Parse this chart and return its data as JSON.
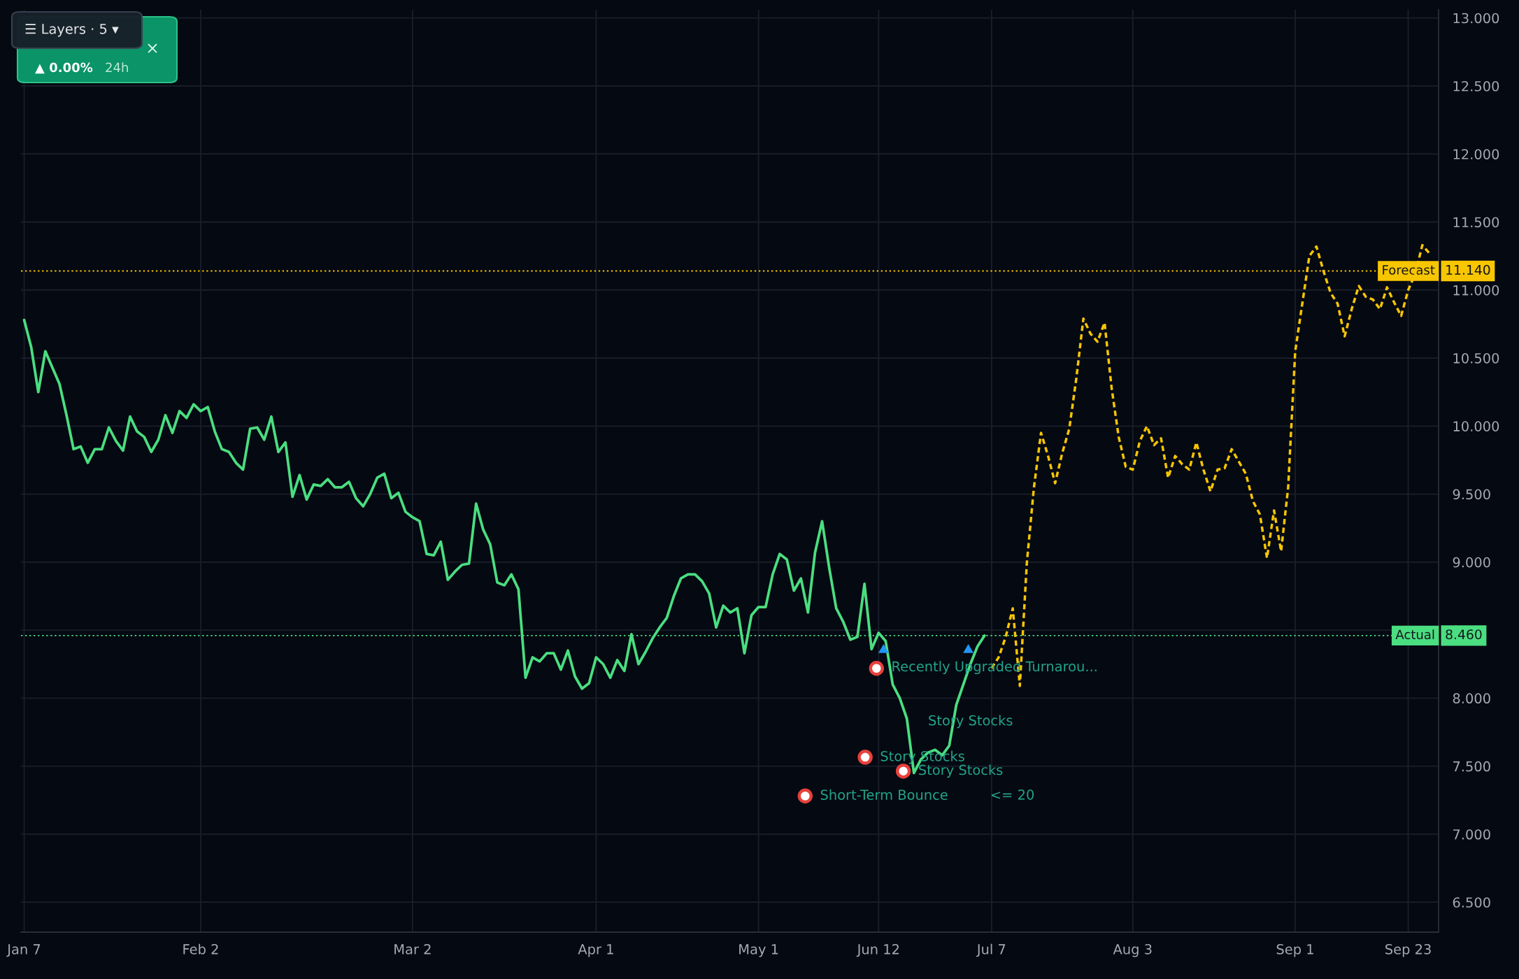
{
  "chart_data": {
    "type": "line",
    "categories": [
      "Jan 7",
      null,
      null,
      null,
      null,
      null,
      null,
      null,
      null,
      null,
      null,
      null,
      null,
      null,
      null,
      null,
      null,
      null,
      null,
      null,
      null,
      null,
      null,
      null,
      null,
      "Feb 2",
      null,
      null,
      null,
      null,
      null,
      null,
      null,
      null,
      null,
      null,
      null,
      null,
      null,
      null,
      null,
      null,
      null,
      null,
      null,
      null,
      null,
      null,
      null,
      null,
      null,
      null,
      null,
      null,
      null,
      "Mar 2",
      null,
      null,
      null,
      null,
      null,
      null,
      null,
      null,
      null,
      null,
      null,
      null,
      null,
      null,
      null,
      null,
      null,
      null,
      null,
      null,
      null,
      null,
      null,
      null,
      null,
      "Apr 1",
      null,
      null,
      null,
      null,
      null,
      null,
      null,
      null,
      null,
      null,
      null,
      null,
      null,
      null,
      null,
      null,
      null,
      null,
      null,
      null,
      null,
      null,
      "May 1",
      null,
      null,
      null,
      null,
      null,
      null,
      null,
      null,
      null,
      null,
      null,
      null,
      null,
      null,
      null,
      null,
      "Jun 12",
      null,
      null,
      null,
      null,
      null,
      null,
      null,
      null,
      null,
      null,
      null,
      null,
      null,
      null,
      null,
      "Jul 7",
      null,
      null,
      null,
      null,
      null,
      null,
      null,
      null,
      null,
      null,
      null,
      null,
      null,
      null,
      null,
      null,
      null,
      null,
      null,
      "Aug 3",
      null,
      null,
      null,
      null,
      null,
      null,
      null,
      null,
      null,
      null,
      null,
      null,
      null,
      null,
      null,
      null,
      null,
      null,
      null,
      null,
      null,
      null,
      "Sep 1",
      null,
      null,
      null,
      null,
      null,
      null,
      null,
      null,
      null,
      null,
      null,
      null,
      null,
      null,
      null,
      "Sep 23",
      null,
      null,
      null
    ],
    "series": [
      {
        "color": "#4ade80",
        "line_style": "solid",
        "values": [
          10.78,
          10.58,
          10.25,
          10.55,
          10.43,
          10.31,
          10.08,
          9.83,
          9.85,
          9.73,
          9.83,
          9.83,
          9.99,
          9.89,
          9.82,
          10.07,
          9.96,
          9.92,
          9.81,
          9.9,
          10.08,
          9.95,
          10.11,
          10.06,
          10.16,
          10.11,
          10.14,
          9.96,
          9.83,
          9.81,
          9.73,
          9.68,
          9.98,
          9.99,
          9.9,
          10.07,
          9.81,
          9.88,
          9.48,
          9.64,
          9.46,
          9.57,
          9.56,
          9.61,
          9.55,
          9.55,
          9.59,
          9.47,
          9.41,
          9.5,
          9.62,
          9.65,
          9.47,
          9.51,
          9.37,
          9.33,
          9.3,
          9.06,
          9.05,
          9.15,
          8.87,
          8.93,
          8.98,
          8.99,
          9.43,
          9.24,
          9.13,
          8.85,
          8.83,
          8.91,
          8.8,
          8.15,
          8.3,
          8.27,
          8.33,
          8.33,
          8.21,
          8.35,
          8.16,
          8.07,
          8.11,
          8.3,
          8.25,
          8.15,
          8.28,
          8.2,
          8.47,
          8.25,
          8.34,
          8.44,
          8.52,
          8.59,
          8.75,
          8.88,
          8.91,
          8.91,
          8.86,
          8.77,
          8.52,
          8.68,
          8.63,
          8.66,
          8.33,
          8.61,
          8.67,
          8.67,
          8.91,
          9.06,
          9.02,
          8.79,
          8.88,
          8.63,
          9.07,
          9.3,
          8.96,
          8.66,
          8.56,
          8.43,
          8.45,
          8.84,
          8.36,
          8.48,
          8.42,
          8.1,
          8.0,
          7.85,
          7.45,
          7.55,
          7.6,
          7.62,
          7.58,
          7.65,
          7.95,
          8.1,
          8.25,
          8.38,
          8.46,
          null,
          null,
          null,
          null,
          null,
          null,
          null,
          null,
          null,
          null,
          null,
          null,
          null,
          null,
          null,
          null,
          null,
          null,
          null,
          null,
          null,
          null,
          null,
          null,
          null,
          null,
          null,
          null,
          null,
          null,
          null,
          null,
          null,
          null,
          null,
          null,
          null,
          null,
          null,
          null,
          null,
          null,
          null,
          null,
          null,
          null,
          null,
          null,
          null,
          null,
          null,
          null,
          null,
          null,
          null,
          null,
          null,
          null,
          null,
          null,
          null,
          null,
          null
        ]
      },
      {
        "color": "#f7c600",
        "line_style": "dashed",
        "values": [
          null,
          null,
          null,
          null,
          null,
          null,
          null,
          null,
          null,
          null,
          null,
          null,
          null,
          null,
          null,
          null,
          null,
          null,
          null,
          null,
          null,
          null,
          null,
          null,
          null,
          null,
          null,
          null,
          null,
          null,
          null,
          null,
          null,
          null,
          null,
          null,
          null,
          null,
          null,
          null,
          null,
          null,
          null,
          null,
          null,
          null,
          null,
          null,
          null,
          null,
          null,
          null,
          null,
          null,
          null,
          null,
          null,
          null,
          null,
          null,
          null,
          null,
          null,
          null,
          null,
          null,
          null,
          null,
          null,
          null,
          null,
          null,
          null,
          null,
          null,
          null,
          null,
          null,
          null,
          null,
          null,
          null,
          null,
          null,
          null,
          null,
          null,
          null,
          null,
          null,
          null,
          null,
          null,
          null,
          null,
          null,
          null,
          null,
          null,
          null,
          null,
          null,
          null,
          null,
          null,
          null,
          null,
          null,
          null,
          null,
          null,
          null,
          null,
          null,
          null,
          null,
          null,
          null,
          null,
          null,
          null,
          null,
          null,
          null,
          null,
          null,
          null,
          null,
          null,
          null,
          null,
          null,
          null,
          null,
          null,
          null,
          null,
          8.22,
          8.3,
          8.45,
          8.66,
          8.09,
          9.0,
          9.55,
          9.95,
          9.78,
          9.58,
          9.8,
          9.98,
          10.35,
          10.79,
          10.68,
          10.62,
          10.76,
          10.28,
          9.92,
          9.7,
          9.68,
          9.89,
          10.0,
          9.86,
          9.91,
          9.62,
          9.78,
          9.72,
          9.68,
          9.88,
          9.68,
          9.52,
          9.68,
          9.69,
          9.83,
          9.74,
          9.65,
          9.45,
          9.35,
          9.03,
          9.38,
          9.08,
          9.55,
          10.55,
          10.9,
          11.25,
          11.32,
          11.14,
          10.98,
          10.9,
          10.66,
          10.86,
          11.03,
          10.95,
          10.93,
          10.86,
          11.02,
          10.91,
          10.81,
          11.0,
          11.12,
          11.33,
          11.27
        ]
      }
    ],
    "ylim": [
      6.28,
      13.06
    ],
    "yticks": [
      {
        "value": 6.5,
        "label": "6.500"
      },
      {
        "value": 7,
        "label": "7.000"
      },
      {
        "value": 7.5,
        "label": "7.500"
      },
      {
        "value": 8,
        "label": "8.000"
      },
      {
        "value": 8.5,
        "label": null
      },
      {
        "value": 9,
        "label": "9.000"
      },
      {
        "value": 9.5,
        "label": "9.500"
      },
      {
        "value": 10,
        "label": "10.000"
      },
      {
        "value": 10.5,
        "label": "10.500"
      },
      {
        "value": 11,
        "label": "11.000"
      },
      {
        "value": 11.5,
        "label": "11.500"
      },
      {
        "value": 12,
        "label": "12.000"
      },
      {
        "value": 12.5,
        "label": "12.500"
      },
      {
        "value": 13,
        "label": "13.000"
      }
    ],
    "grid": true,
    "ref_lines": [
      {
        "axis": "y",
        "value": 11.14,
        "label": "Forecast",
        "color": "#f7c600",
        "line_style": "dotted"
      },
      {
        "axis": "y",
        "value": 8.46,
        "label": "Actual",
        "color": "#4ade80",
        "line_style": "dotted"
      }
    ],
    "annotations": [
      "☰ Layers · 5 ▾",
      "▲ 0.00%",
      "24h",
      "×",
      "Recently Upgraded Turnarou...",
      "Story Stocks",
      "Story Stocks",
      "Story Stocks",
      "Short-Term Bounce",
      "<= 20",
      "11.140",
      "8.460"
    ]
  }
}
